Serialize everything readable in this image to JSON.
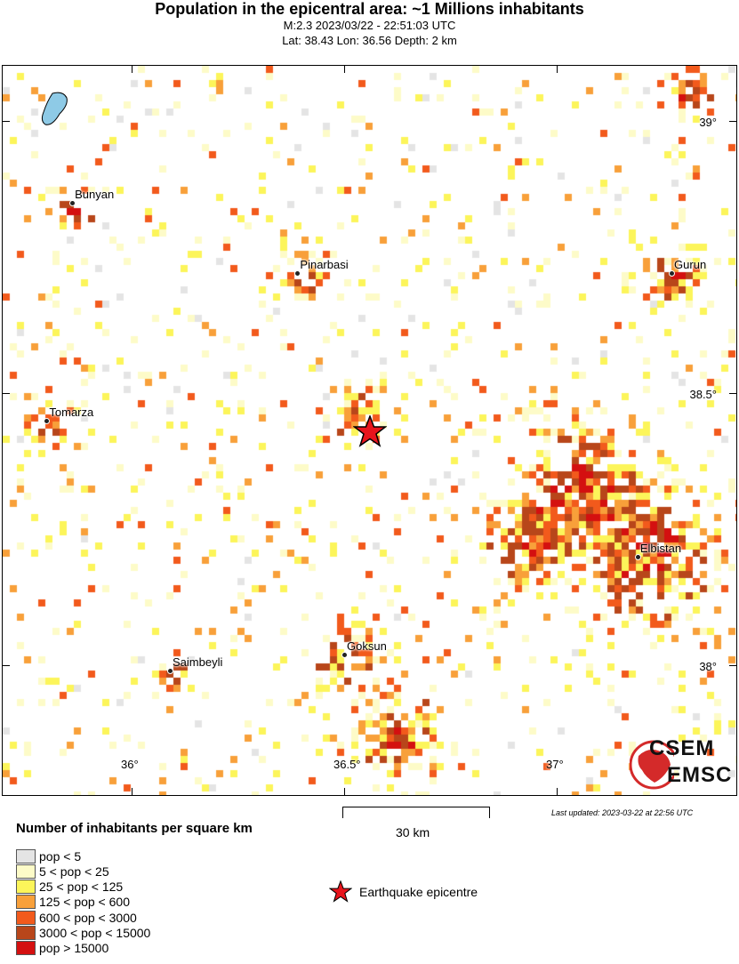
{
  "header": {
    "title": "Population in the epicentral area: ~1 Millions inhabitants",
    "event": "M:2.3 2023/03/22 - 22:51:03 UTC",
    "location": "Lat: 38.43 Lon: 36.56 Depth: 2 km"
  },
  "map": {
    "cities": [
      {
        "name": "Bunyan",
        "lat": 38.85,
        "lon": 35.86
      },
      {
        "name": "Pinarbasi",
        "lat": 38.72,
        "lon": 36.39
      },
      {
        "name": "Gurun",
        "lat": 38.72,
        "lon": 37.27
      },
      {
        "name": "Tomarza",
        "lat": 38.45,
        "lon": 35.8
      },
      {
        "name": "Elbistan",
        "lat": 38.2,
        "lon": 37.19
      },
      {
        "name": "Goksun",
        "lat": 38.02,
        "lon": 36.5
      },
      {
        "name": "Saimbeyli",
        "lat": 37.99,
        "lon": 36.09
      }
    ],
    "lat_labels": [
      "39°",
      "38.5°",
      "38°"
    ],
    "lon_labels": [
      "36°",
      "36.5°",
      "37°"
    ],
    "epicentre": {
      "lat": 38.43,
      "lon": 36.56
    },
    "logo": "CSEM EMSC"
  },
  "scale_bar": "30 km",
  "last_updated": "Last updated: 2023-03-22 at 22:56 UTC",
  "legend": {
    "title": "Number of inhabitants per square km",
    "items": [
      {
        "label": "pop < 5",
        "color": "#e4e4e4"
      },
      {
        "label": "5 < pop < 25",
        "color": "#fdfbc8"
      },
      {
        "label": "25 < pop < 125",
        "color": "#fcf55a"
      },
      {
        "label": "125 < pop < 600",
        "color": "#f8a03a"
      },
      {
        "label": "600 < pop < 3000",
        "color": "#f25a1c"
      },
      {
        "label": "3000 < pop < 15000",
        "color": "#b8461a"
      },
      {
        "label": "pop > 15000",
        "color": "#d41010"
      }
    ],
    "epicentre_label": "Earthquake epicentre"
  }
}
